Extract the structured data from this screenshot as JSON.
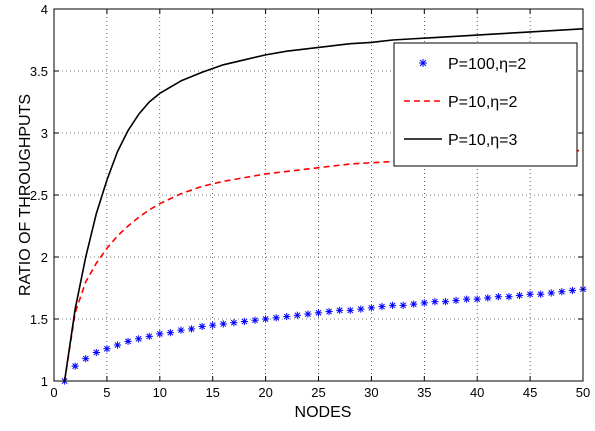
{
  "chart_data": {
    "type": "line",
    "title": "",
    "xlabel": "NODES",
    "ylabel": "RATIO OF THROUGHPUTS",
    "xlim": [
      0,
      50
    ],
    "ylim": [
      1,
      4
    ],
    "xticks": [
      0,
      5,
      10,
      15,
      20,
      25,
      30,
      35,
      40,
      45,
      50
    ],
    "yticks": [
      1,
      1.5,
      2,
      2.5,
      3,
      3.5,
      4
    ],
    "xtick_labels": [
      "0",
      "5",
      "10",
      "15",
      "20",
      "25",
      "30",
      "35",
      "40",
      "45",
      "50"
    ],
    "ytick_labels": [
      "1",
      "1.5",
      "2",
      "2.5",
      "3",
      "3.5",
      "4"
    ],
    "grid": true,
    "grid_style": "dotted",
    "legend_position": "top-right",
    "series": [
      {
        "name": "P=100,η=2",
        "style": "markers",
        "marker": "asterisk",
        "color": "#0000ff",
        "x": [
          1,
          2,
          3,
          4,
          5,
          6,
          7,
          8,
          9,
          10,
          11,
          12,
          13,
          14,
          15,
          16,
          17,
          18,
          19,
          20,
          21,
          22,
          23,
          24,
          25,
          26,
          27,
          28,
          29,
          30,
          31,
          32,
          33,
          34,
          35,
          36,
          37,
          38,
          39,
          40,
          41,
          42,
          43,
          44,
          45,
          46,
          47,
          48,
          49,
          50
        ],
        "y": [
          1.0,
          1.12,
          1.18,
          1.23,
          1.26,
          1.29,
          1.32,
          1.34,
          1.36,
          1.38,
          1.39,
          1.41,
          1.42,
          1.44,
          1.45,
          1.46,
          1.47,
          1.48,
          1.49,
          1.5,
          1.51,
          1.52,
          1.53,
          1.54,
          1.55,
          1.56,
          1.57,
          1.57,
          1.58,
          1.59,
          1.6,
          1.61,
          1.61,
          1.62,
          1.63,
          1.64,
          1.64,
          1.65,
          1.66,
          1.66,
          1.67,
          1.68,
          1.68,
          1.69,
          1.7,
          1.7,
          1.71,
          1.72,
          1.73,
          1.74
        ]
      },
      {
        "name": "P=10,η=2",
        "style": "dashed",
        "color": "#ff0000",
        "x": [
          1,
          2,
          3,
          4,
          5,
          6,
          7,
          8,
          9,
          10,
          12,
          14,
          16,
          18,
          20,
          22,
          24,
          26,
          28,
          30,
          32,
          34,
          36,
          38,
          40,
          42,
          44,
          46,
          48,
          50
        ],
        "y": [
          1.0,
          1.55,
          1.8,
          1.95,
          2.07,
          2.17,
          2.25,
          2.32,
          2.38,
          2.43,
          2.51,
          2.57,
          2.61,
          2.64,
          2.67,
          2.69,
          2.71,
          2.73,
          2.75,
          2.76,
          2.77,
          2.78,
          2.79,
          2.8,
          2.81,
          2.82,
          2.83,
          2.84,
          2.85,
          2.86
        ]
      },
      {
        "name": "P=10,η=3",
        "style": "solid",
        "color": "#000000",
        "x": [
          1,
          2,
          3,
          4,
          5,
          6,
          7,
          8,
          9,
          10,
          12,
          14,
          16,
          18,
          20,
          22,
          24,
          26,
          28,
          30,
          32,
          34,
          36,
          38,
          40,
          42,
          44,
          46,
          48,
          50
        ],
        "y": [
          1.0,
          1.58,
          2.0,
          2.35,
          2.62,
          2.85,
          3.02,
          3.15,
          3.25,
          3.32,
          3.42,
          3.49,
          3.55,
          3.59,
          3.63,
          3.66,
          3.68,
          3.7,
          3.72,
          3.73,
          3.75,
          3.76,
          3.77,
          3.78,
          3.79,
          3.8,
          3.81,
          3.82,
          3.83,
          3.84
        ]
      }
    ]
  }
}
